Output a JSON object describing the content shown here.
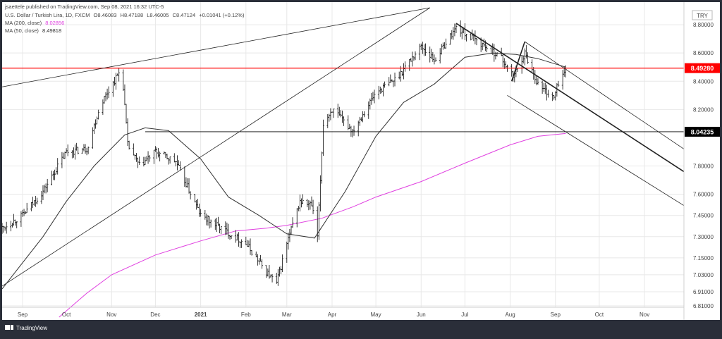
{
  "header": {
    "publisher_line": "jsaettele published on TradingView.com, Sep 08, 2021 16:32 UTC-5",
    "symbol_line": "U.S. Dollar / Turkish Lira, 1D, FXCM",
    "ohlc": {
      "o": "O8.46083",
      "h": "H8.47188",
      "l": "L8.46005",
      "c": "C8.47124",
      "chg": "+0.01041 (+0.12%)"
    },
    "ma200": {
      "label": "MA (200, close)",
      "value": "8.02856"
    },
    "ma50": {
      "label": "MA (50, close)",
      "value": "8.49818"
    }
  },
  "footer": {
    "brand": "TradingView"
  },
  "colors": {
    "bg": "#ffffff",
    "frame": "#2a2e39",
    "candle": "#222222",
    "ma200": "#e040e0",
    "ma50": "#333333",
    "hline_red": "#ff0000",
    "hline_black": "#000000",
    "price_badge_red": "#ff0000",
    "price_badge_black": "#000000",
    "grid": "#e8e8e8"
  },
  "chart_data": {
    "type": "candlestick",
    "currency": "TRY",
    "ylim": [
      6.8,
      8.95
    ],
    "y_ticks": [
      "8.80000",
      "8.60000",
      "8.40000",
      "8.20000",
      "7.80000",
      "7.60000",
      "7.45000",
      "7.30000",
      "7.15000",
      "7.03000",
      "6.91000",
      "6.81000"
    ],
    "y_tick_values": [
      8.8,
      8.6,
      8.4,
      8.2,
      7.8,
      7.6,
      7.45,
      7.3,
      7.15,
      7.03,
      6.91,
      6.81
    ],
    "x_labels": [
      "Sep",
      "Oct",
      "Nov",
      "Dec",
      "2021",
      "Feb",
      "Mar",
      "Apr",
      "May",
      "Jun",
      "Jul",
      "Aug",
      "Sep",
      "Oct",
      "Nov"
    ],
    "x_label_dates": [
      "2020-09-01",
      "2020-10-01",
      "2020-11-01",
      "2020-12-01",
      "2021-01-01",
      "2021-02-01",
      "2021-03-01",
      "2021-04-01",
      "2021-05-01",
      "2021-06-01",
      "2021-07-01",
      "2021-08-01",
      "2021-09-01",
      "2021-10-01",
      "2021-11-01"
    ],
    "price_labels": [
      {
        "text": "8.49280",
        "value": 8.4928,
        "style": "red"
      },
      {
        "text": "8.04235",
        "value": 8.04235,
        "style": "black"
      }
    ],
    "horizontal_lines": [
      {
        "value": 8.4928,
        "color": "red",
        "from": "2020-08-18"
      },
      {
        "value": 8.04235,
        "color": "black",
        "from": "2020-11-24"
      }
    ],
    "trend_lines": [
      {
        "from": [
          "2020-08-18",
          8.36
        ],
        "to": [
          "2021-06-07",
          8.92
        ]
      },
      {
        "from": [
          "2020-08-18",
          6.95
        ],
        "to": [
          "2021-06-07",
          8.92
        ]
      },
      {
        "from": [
          "2021-06-25",
          8.81
        ],
        "to": [
          "2021-11-28",
          7.76
        ]
      },
      {
        "from": [
          "2021-08-11",
          8.68
        ],
        "to": [
          "2021-11-28",
          7.92
        ]
      },
      {
        "from": [
          "2021-07-30",
          8.3
        ],
        "to": [
          "2021-11-28",
          7.52
        ]
      },
      {
        "from": [
          "2021-08-02",
          8.4
        ],
        "to": [
          "2021-08-11",
          8.68
        ]
      }
    ],
    "candle_anchors": {
      "dates": [
        "2020-08-18",
        "2020-09-01",
        "2020-09-15",
        "2020-10-01",
        "2020-10-15",
        "2020-10-25",
        "2020-11-05",
        "2020-11-08",
        "2020-11-12",
        "2020-11-20",
        "2020-12-01",
        "2020-12-15",
        "2021-01-01",
        "2021-01-15",
        "2021-02-01",
        "2021-02-15",
        "2021-02-22",
        "2021-03-01",
        "2021-03-10",
        "2021-03-18",
        "2021-03-22",
        "2021-03-26",
        "2021-04-01",
        "2021-04-15",
        "2021-05-01",
        "2021-05-15",
        "2021-06-01",
        "2021-06-10",
        "2021-06-25",
        "2021-07-10",
        "2021-07-25",
        "2021-08-03",
        "2021-08-11",
        "2021-08-20",
        "2021-08-31",
        "2021-09-04",
        "2021-09-08"
      ],
      "close": [
        7.36,
        7.45,
        7.62,
        7.9,
        7.92,
        8.25,
        8.44,
        8.5,
        7.95,
        7.8,
        7.9,
        7.83,
        7.45,
        7.36,
        7.25,
        7.05,
        6.97,
        7.25,
        7.55,
        7.52,
        7.3,
        8.1,
        8.2,
        8.05,
        8.32,
        8.42,
        8.65,
        8.55,
        8.78,
        8.68,
        8.58,
        8.43,
        8.6,
        8.38,
        8.28,
        8.43,
        8.47
      ]
    },
    "ma200_points": {
      "dates": [
        "2020-09-26",
        "2020-10-15",
        "2020-11-01",
        "2020-12-01",
        "2021-01-01",
        "2021-01-25",
        "2021-02-15",
        "2021-03-01",
        "2021-03-25",
        "2021-04-15",
        "2021-05-01",
        "2021-06-01",
        "2021-07-01",
        "2021-08-01",
        "2021-08-20",
        "2021-09-08"
      ],
      "values": [
        6.73,
        6.9,
        7.03,
        7.17,
        7.27,
        7.34,
        7.36,
        7.38,
        7.43,
        7.51,
        7.58,
        7.69,
        7.82,
        7.95,
        8.01,
        8.03
      ]
    },
    "ma50_points": {
      "dates": [
        "2020-08-18",
        "2020-09-15",
        "2020-10-01",
        "2020-10-20",
        "2020-11-10",
        "2020-11-24",
        "2020-12-10",
        "2021-01-01",
        "2021-01-20",
        "2021-02-10",
        "2021-03-01",
        "2021-03-20",
        "2021-04-10",
        "2021-05-01",
        "2021-05-20",
        "2021-06-10",
        "2021-07-01",
        "2021-07-20",
        "2021-08-05",
        "2021-08-20",
        "2021-09-08"
      ],
      "values": [
        6.93,
        7.3,
        7.55,
        7.8,
        8.02,
        8.07,
        8.05,
        7.85,
        7.58,
        7.45,
        7.32,
        7.29,
        7.62,
        8.01,
        8.25,
        8.38,
        8.57,
        8.6,
        8.59,
        8.56,
        8.5
      ]
    }
  }
}
